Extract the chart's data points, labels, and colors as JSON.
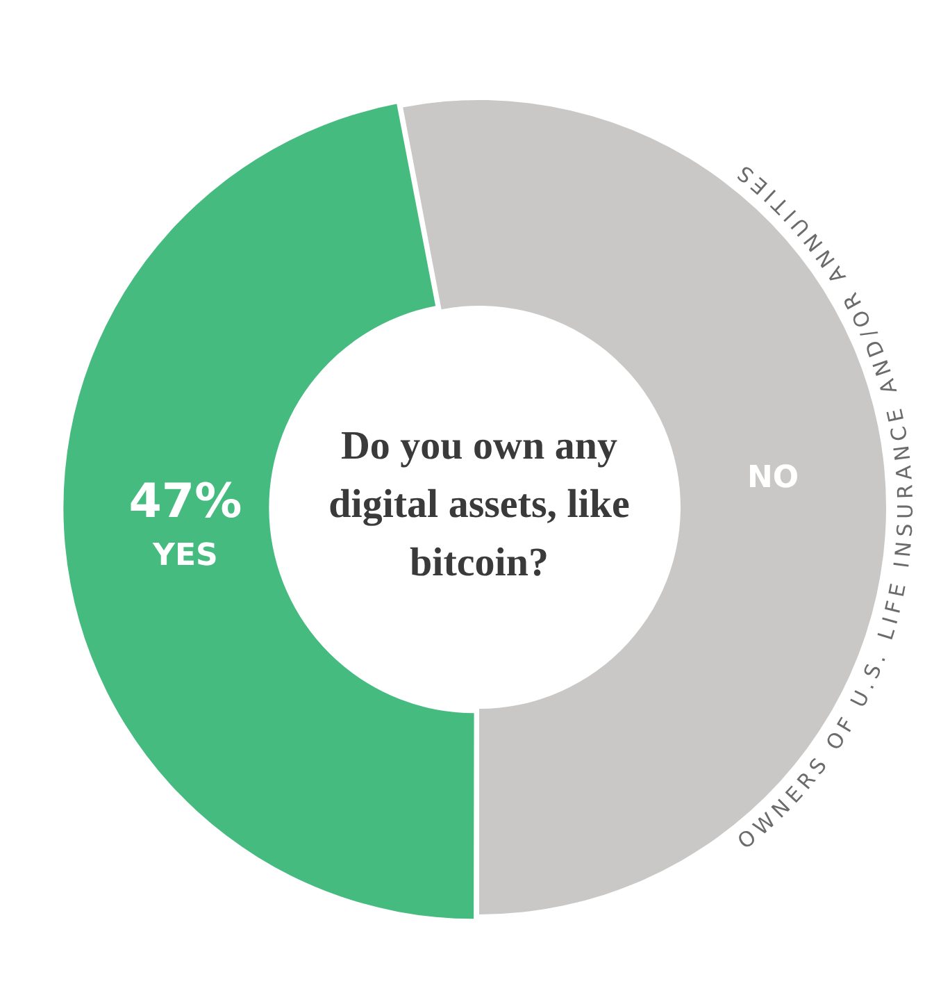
{
  "chart_data": {
    "type": "donut",
    "title": "Do you own any digital assets, like bitcoin?",
    "categories": [
      "YES",
      "NO"
    ],
    "values": [
      47,
      53
    ],
    "colors": [
      "#45bb7f",
      "#c9c8c7"
    ],
    "value_labels": [
      "47%",
      null
    ],
    "annotations": [
      "OWNERS OF U.S. LIFE INSURANCE AND/OR ANNUITIES"
    ],
    "legend": false
  }
}
